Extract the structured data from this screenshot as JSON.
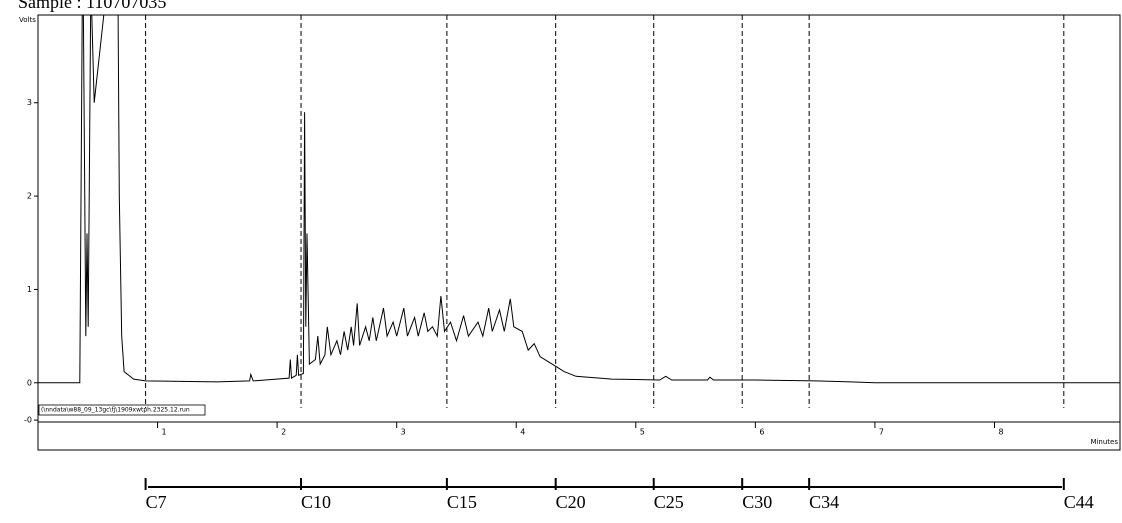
{
  "chart_data": {
    "type": "line",
    "title": "Sample : 110707035",
    "y_label": "Volts",
    "x_label": "Minutes",
    "file_label": "(\\nndata\\w88_09_13gc\\fj\\1909xwtph.2325.12.run",
    "color": "#000000",
    "xlim": [
      0,
      9.05
    ],
    "ylim": [
      -0.72,
      3.94
    ],
    "xticks": [
      1,
      2,
      3,
      4,
      5,
      6,
      7,
      8
    ],
    "yticks": [
      {
        "value": -0.4,
        "label": "-0"
      },
      0,
      1,
      2,
      3
    ],
    "x": [
      0,
      0.35,
      0.37,
      0.38,
      0.4,
      0.41,
      0.42,
      0.44,
      0.45,
      0.47,
      0.55,
      0.67,
      0.68,
      0.7,
      0.72,
      0.8,
      0.9,
      1.5,
      1.77,
      1.78,
      1.8,
      2.1,
      2.11,
      2.12,
      2.16,
      2.17,
      2.18,
      2.22,
      2.23,
      2.24,
      2.25,
      2.27,
      2.32,
      2.34,
      2.36,
      2.4,
      2.42,
      2.45,
      2.5,
      2.53,
      2.56,
      2.59,
      2.62,
      2.64,
      2.67,
      2.69,
      2.74,
      2.77,
      2.8,
      2.83,
      2.89,
      2.92,
      2.97,
      3.0,
      3.06,
      3.09,
      3.15,
      3.18,
      3.23,
      3.26,
      3.3,
      3.34,
      3.37,
      3.4,
      3.45,
      3.5,
      3.56,
      3.6,
      3.68,
      3.72,
      3.77,
      3.8,
      3.86,
      3.9,
      3.95,
      3.98,
      4.05,
      4.1,
      4.15,
      4.2,
      4.3,
      4.4,
      4.5,
      4.8,
      5.2,
      5.25,
      5.3,
      5.6,
      5.62,
      5.65,
      6.0,
      6.5,
      6.8,
      7.0,
      9.05
    ],
    "values": [
      0,
      0,
      3.94,
      3.94,
      0.5,
      1.6,
      0.6,
      3.94,
      3.94,
      3.0,
      3.94,
      3.94,
      2.0,
      0.5,
      0.12,
      0.04,
      0.02,
      0.01,
      0.02,
      0.09,
      0.02,
      0.05,
      0.25,
      0.05,
      0.08,
      0.3,
      0.08,
      0.1,
      2.9,
      0.6,
      1.6,
      0.2,
      0.25,
      0.5,
      0.2,
      0.3,
      0.6,
      0.3,
      0.45,
      0.3,
      0.55,
      0.35,
      0.6,
      0.4,
      0.85,
      0.4,
      0.6,
      0.45,
      0.7,
      0.45,
      0.8,
      0.5,
      0.65,
      0.5,
      0.8,
      0.5,
      0.7,
      0.5,
      0.75,
      0.55,
      0.6,
      0.5,
      0.93,
      0.55,
      0.65,
      0.45,
      0.72,
      0.5,
      0.65,
      0.5,
      0.8,
      0.55,
      0.78,
      0.55,
      0.9,
      0.6,
      0.55,
      0.35,
      0.42,
      0.28,
      0.2,
      0.12,
      0.07,
      0.04,
      0.03,
      0.07,
      0.03,
      0.03,
      0.06,
      0.03,
      0.03,
      0.02,
      0.01,
      0,
      0
    ],
    "markers": [
      {
        "x": 0.9,
        "label": "C7"
      },
      {
        "x": 2.2,
        "label": "C10"
      },
      {
        "x": 3.42,
        "label": "C15"
      },
      {
        "x": 4.33,
        "label": "C20"
      },
      {
        "x": 5.15,
        "label": "C25"
      },
      {
        "x": 5.89,
        "label": "C30"
      },
      {
        "x": 6.45,
        "label": "C34"
      },
      {
        "x": 8.58,
        "label": "C44"
      }
    ]
  }
}
